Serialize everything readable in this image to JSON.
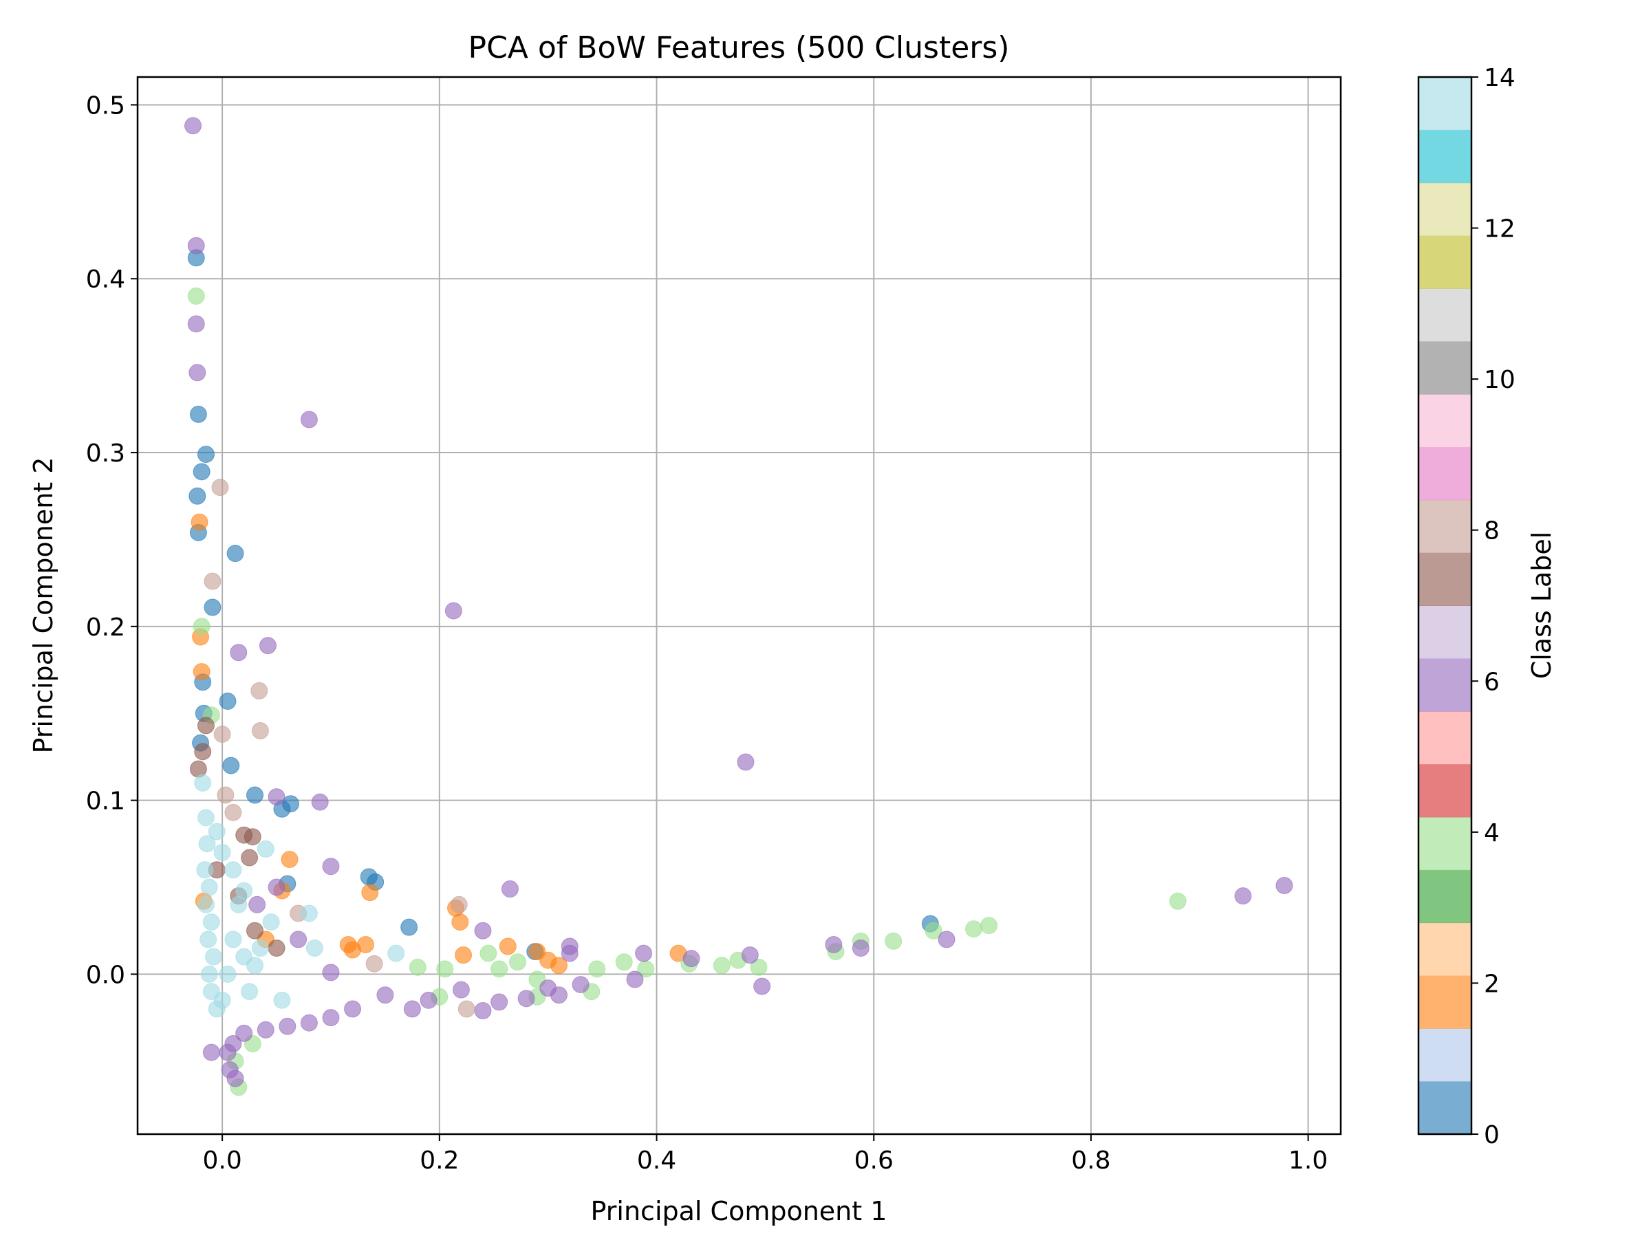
{
  "chart_data": {
    "type": "scatter",
    "title": "PCA of BoW Features (500 Clusters)",
    "xlabel": "Principal Component 1",
    "ylabel": "Principal Component 2",
    "xlim": [
      -0.078,
      1.03
    ],
    "ylim": [
      -0.092,
      0.516
    ],
    "xticks": [
      0.0,
      0.2,
      0.4,
      0.6,
      0.8,
      1.0
    ],
    "xtick_labels": [
      "0.0",
      "0.2",
      "0.4",
      "0.6",
      "0.8",
      "1.0"
    ],
    "yticks": [
      0.0,
      0.1,
      0.2,
      0.3,
      0.4,
      0.5
    ],
    "ytick_labels": [
      "0.0",
      "0.1",
      "0.2",
      "0.3",
      "0.4",
      "0.5"
    ],
    "grid": true,
    "colormap": "tab20",
    "colorbar": {
      "label": "Class Label",
      "min": 0,
      "max": 14,
      "ticks": [
        0,
        2,
        4,
        6,
        8,
        10,
        12,
        14
      ],
      "tick_labels": [
        "0",
        "2",
        "4",
        "6",
        "8",
        "10",
        "12",
        "14"
      ],
      "colors": [
        "#1f77b4",
        "#aec7e8",
        "#ff7f0e",
        "#ffbb78",
        "#2ca02c",
        "#98df8a",
        "#d62728",
        "#ff9896",
        "#9467bd",
        "#c5b0d5",
        "#8c564b",
        "#c49c94",
        "#e377c2",
        "#f7b6d2",
        "#7f7f7f",
        "#c7c7c7",
        "#bcbd22",
        "#dbdb8d",
        "#17becf",
        "#9edae5"
      ]
    },
    "series": [
      {
        "color": "#1f77b4",
        "points": [
          [
            -0.024,
            0.412
          ],
          [
            -0.022,
            0.322
          ],
          [
            -0.015,
            0.299
          ],
          [
            -0.019,
            0.289
          ],
          [
            -0.023,
            0.275
          ],
          [
            -0.022,
            0.254
          ],
          [
            0.012,
            0.242
          ],
          [
            -0.009,
            0.211
          ],
          [
            0.005,
            0.157
          ],
          [
            0.008,
            0.12
          ],
          [
            0.03,
            0.103
          ],
          [
            0.055,
            0.095
          ],
          [
            0.063,
            0.098
          ],
          [
            0.135,
            0.056
          ],
          [
            0.141,
            0.053
          ],
          [
            0.172,
            0.027
          ],
          [
            0.06,
            0.052
          ],
          [
            0.288,
            0.013
          ],
          [
            0.652,
            0.029
          ],
          [
            -0.018,
            0.168
          ],
          [
            -0.017,
            0.15
          ],
          [
            -0.02,
            0.133
          ]
        ]
      },
      {
        "color": "#ff7f0e",
        "points": [
          [
            -0.021,
            0.26
          ],
          [
            -0.02,
            0.194
          ],
          [
            -0.019,
            0.174
          ],
          [
            0.132,
            0.017
          ],
          [
            0.136,
            0.047
          ],
          [
            0.055,
            0.048
          ],
          [
            0.062,
            0.066
          ],
          [
            0.116,
            0.017
          ],
          [
            0.12,
            0.014
          ],
          [
            0.215,
            0.038
          ],
          [
            0.219,
            0.03
          ],
          [
            0.222,
            0.011
          ],
          [
            0.263,
            0.016
          ],
          [
            0.29,
            0.013
          ],
          [
            0.3,
            0.008
          ],
          [
            0.31,
            0.005
          ],
          [
            0.42,
            0.012
          ],
          [
            -0.017,
            0.042
          ],
          [
            0.04,
            0.02
          ]
        ]
      },
      {
        "color": "#98df8a",
        "points": [
          [
            -0.024,
            0.39
          ],
          [
            -0.019,
            0.2
          ],
          [
            -0.01,
            0.149
          ],
          [
            0.18,
            0.004
          ],
          [
            0.2,
            -0.013
          ],
          [
            0.205,
            0.003
          ],
          [
            0.245,
            0.012
          ],
          [
            0.255,
            0.003
          ],
          [
            0.272,
            0.007
          ],
          [
            0.29,
            -0.013
          ],
          [
            0.29,
            -0.003
          ],
          [
            0.345,
            0.003
          ],
          [
            0.34,
            -0.01
          ],
          [
            0.37,
            0.007
          ],
          [
            0.39,
            0.003
          ],
          [
            0.43,
            0.006
          ],
          [
            0.46,
            0.005
          ],
          [
            0.475,
            0.008
          ],
          [
            0.494,
            0.004
          ],
          [
            0.565,
            0.013
          ],
          [
            0.588,
            0.019
          ],
          [
            0.618,
            0.019
          ],
          [
            0.655,
            0.025
          ],
          [
            0.692,
            0.026
          ],
          [
            0.706,
            0.028
          ],
          [
            0.88,
            0.042
          ],
          [
            0.015,
            -0.065
          ],
          [
            0.028,
            -0.04
          ],
          [
            0.012,
            -0.05
          ]
        ]
      },
      {
        "color": "#9467bd",
        "points": [
          [
            -0.027,
            0.488
          ],
          [
            -0.024,
            0.419
          ],
          [
            -0.024,
            0.374
          ],
          [
            -0.023,
            0.346
          ],
          [
            0.08,
            0.319
          ],
          [
            0.213,
            0.209
          ],
          [
            0.042,
            0.189
          ],
          [
            0.015,
            0.185
          ],
          [
            0.482,
            0.122
          ],
          [
            0.09,
            0.099
          ],
          [
            0.05,
            0.102
          ],
          [
            0.1,
            0.062
          ],
          [
            0.265,
            0.049
          ],
          [
            0.94,
            0.045
          ],
          [
            0.978,
            0.051
          ],
          [
            0.24,
            0.025
          ],
          [
            0.32,
            0.016
          ],
          [
            0.32,
            0.012
          ],
          [
            0.388,
            0.012
          ],
          [
            0.432,
            0.009
          ],
          [
            0.486,
            0.011
          ],
          [
            0.497,
            -0.007
          ],
          [
            0.563,
            0.017
          ],
          [
            0.588,
            0.015
          ],
          [
            0.667,
            0.02
          ],
          [
            0.33,
            -0.006
          ],
          [
            0.31,
            -0.012
          ],
          [
            0.255,
            -0.016
          ],
          [
            0.24,
            -0.021
          ],
          [
            0.22,
            -0.009
          ],
          [
            0.15,
            -0.012
          ],
          [
            0.12,
            -0.02
          ],
          [
            0.1,
            -0.025
          ],
          [
            0.08,
            -0.028
          ],
          [
            0.06,
            -0.03
          ],
          [
            0.04,
            -0.032
          ],
          [
            0.02,
            -0.034
          ],
          [
            0.01,
            -0.04
          ],
          [
            0.005,
            -0.045
          ],
          [
            0.012,
            -0.06
          ],
          [
            0.007,
            -0.055
          ],
          [
            -0.01,
            -0.045
          ],
          [
            0.07,
            0.02
          ],
          [
            0.1,
            0.001
          ],
          [
            0.032,
            0.04
          ],
          [
            0.05,
            0.05
          ],
          [
            0.38,
            -0.003
          ],
          [
            0.175,
            -0.02
          ],
          [
            0.19,
            -0.015
          ],
          [
            0.28,
            -0.014
          ],
          [
            0.3,
            -0.008
          ]
        ]
      },
      {
        "color": "#c49c94",
        "points": [
          [
            -0.002,
            0.28
          ],
          [
            -0.009,
            0.226
          ],
          [
            0.034,
            0.163
          ],
          [
            0.035,
            0.14
          ],
          [
            0.0,
            0.138
          ],
          [
            0.218,
            0.04
          ],
          [
            0.225,
            -0.02
          ],
          [
            0.14,
            0.006
          ],
          [
            0.01,
            0.093
          ],
          [
            0.003,
            0.103
          ],
          [
            0.07,
            0.035
          ]
        ]
      },
      {
        "color": "#8c564b",
        "points": [
          [
            -0.015,
            0.143
          ],
          [
            -0.018,
            0.128
          ],
          [
            -0.022,
            0.118
          ],
          [
            0.02,
            0.08
          ],
          [
            0.028,
            0.079
          ],
          [
            0.025,
            0.067
          ],
          [
            -0.005,
            0.06
          ],
          [
            0.015,
            0.045
          ],
          [
            0.03,
            0.025
          ],
          [
            0.05,
            0.015
          ]
        ]
      },
      {
        "color": "#9edae5",
        "points": [
          [
            -0.018,
            0.11
          ],
          [
            -0.015,
            0.09
          ],
          [
            -0.014,
            0.075
          ],
          [
            -0.016,
            0.06
          ],
          [
            -0.012,
            0.05
          ],
          [
            -0.015,
            0.04
          ],
          [
            -0.01,
            0.03
          ],
          [
            -0.013,
            0.02
          ],
          [
            -0.008,
            0.01
          ],
          [
            -0.012,
            0.0
          ],
          [
            -0.01,
            -0.01
          ],
          [
            -0.005,
            -0.02
          ],
          [
            0.0,
            -0.015
          ],
          [
            0.005,
            0.0
          ],
          [
            0.01,
            0.02
          ],
          [
            0.015,
            0.04
          ],
          [
            0.02,
            0.01
          ],
          [
            0.025,
            -0.01
          ],
          [
            0.03,
            0.005
          ],
          [
            0.035,
            0.015
          ],
          [
            0.04,
            0.072
          ],
          [
            0.08,
            0.035
          ],
          [
            0.16,
            0.012
          ],
          [
            0.085,
            0.015
          ],
          [
            0.055,
            -0.015
          ],
          [
            0.02,
            0.048
          ],
          [
            0.0,
            0.07
          ],
          [
            -0.005,
            0.082
          ],
          [
            0.01,
            0.06
          ],
          [
            0.045,
            0.03
          ]
        ]
      }
    ]
  }
}
